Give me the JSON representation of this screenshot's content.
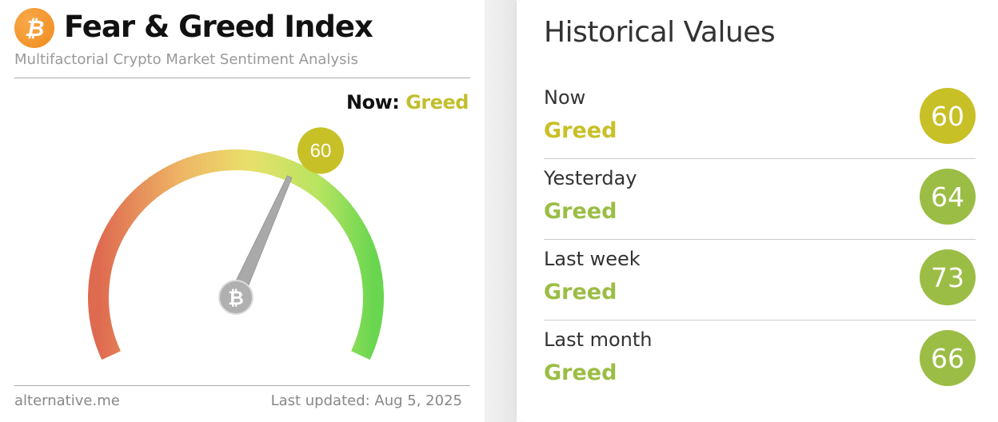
{
  "header": {
    "logo_icon": "bitcoin-icon",
    "title": "Fear & Greed Index",
    "subtitle": "Multifactorial Crypto Market Sentiment Analysis"
  },
  "gauge": {
    "now_label": "Now:",
    "now_class": "Greed",
    "value": 60,
    "min": 0,
    "max": 100,
    "value_label": "60",
    "value_color": "#c8c027",
    "center_icon": "bitcoin-icon"
  },
  "footer": {
    "brand": "alternative.me",
    "last_updated": "Last updated: Aug 5, 2025"
  },
  "historical": {
    "title": "Historical Values",
    "rows": [
      {
        "label": "Now",
        "classification": "Greed",
        "value": "60",
        "color": "#c8c027"
      },
      {
        "label": "Yesterday",
        "classification": "Greed",
        "value": "64",
        "color": "#9bbd45"
      },
      {
        "label": "Last week",
        "classification": "Greed",
        "value": "73",
        "color": "#9bbd45"
      },
      {
        "label": "Last month",
        "classification": "Greed",
        "value": "66",
        "color": "#9bbd45"
      }
    ]
  }
}
